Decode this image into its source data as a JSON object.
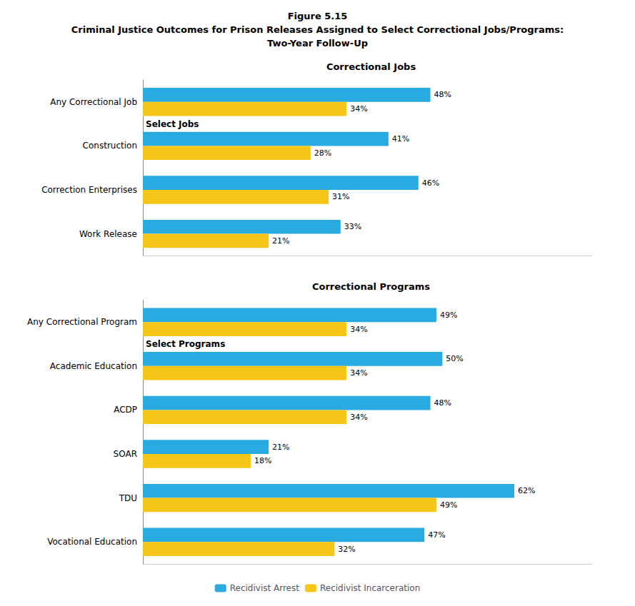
{
  "title": "Figure 5.15\nCriminal Justice Outcomes for Prison Releases Assigned to Select Correctional Jobs/Programs:\nTwo-Year Follow-Up",
  "chart_data": [
    {
      "type": "bar",
      "title": "Correctional Jobs",
      "orientation": "horizontal",
      "annotations": [
        "Select Jobs"
      ],
      "categories": [
        "Any Correctional Job",
        "Construction",
        "Correction Enterprises",
        "Work Release"
      ],
      "series": [
        {
          "name": "Recidivist Arrest",
          "color": "#29ABE2",
          "values": [
            48,
            41,
            46,
            33
          ],
          "value_labels": [
            "48%",
            "41%",
            "46%",
            "33%"
          ]
        },
        {
          "name": "Recidivist Incarceration",
          "color": "#F5C518",
          "values": [
            34,
            28,
            31,
            21
          ],
          "value_labels": [
            "34%",
            "28%",
            "31%",
            "21%"
          ]
        }
      ],
      "xlim": [
        0,
        75
      ],
      "grid": false,
      "data_labels": true,
      "tick_labels": "y",
      "legend": "bottom"
    },
    {
      "type": "bar",
      "title": "Correctional Programs",
      "orientation": "horizontal",
      "annotations": [
        "Select Programs"
      ],
      "categories": [
        "Any Correctional Program",
        "Academic Education",
        "ACDP",
        "SOAR",
        "TDU",
        "Vocational Education"
      ],
      "series": [
        {
          "name": "Recidivist Arrest",
          "color": "#29ABE2",
          "values": [
            49,
            50,
            48,
            21,
            62,
            47
          ],
          "value_labels": [
            "49%",
            "50%",
            "48%",
            "21%",
            "62%",
            "47%"
          ]
        },
        {
          "name": "Recidivist Incarceration",
          "color": "#F5C518",
          "values": [
            34,
            34,
            34,
            18,
            49,
            32
          ],
          "value_labels": [
            "34%",
            "34%",
            "34%",
            "18%",
            "49%",
            "32%"
          ]
        }
      ],
      "xlim": [
        0,
        75
      ],
      "grid": false,
      "data_labels": true,
      "tick_labels": "y",
      "legend": "bottom"
    }
  ]
}
